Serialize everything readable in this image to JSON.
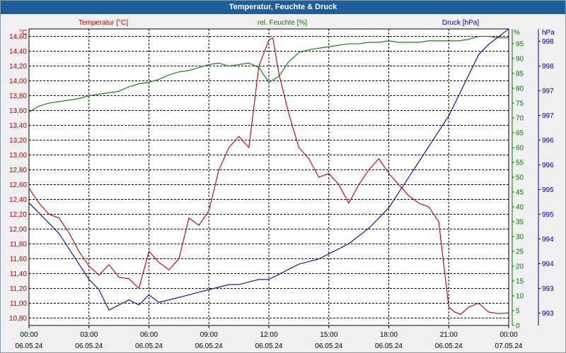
{
  "window": {
    "title": "Temperatur, Feuchte & Druck"
  },
  "chart_data": {
    "type": "line",
    "title": "Temperatur, Feuchte & Druck",
    "colors": {
      "temperature": "#c00000",
      "humidity": "#007a00",
      "pressure": "#0000b0"
    },
    "x": {
      "range_hours": [
        0,
        24
      ],
      "ticks": [
        {
          "time": "00:00",
          "date": "06.05.24"
        },
        {
          "time": "03:00",
          "date": "06.05.24"
        },
        {
          "time": "06:00",
          "date": "06.05.24"
        },
        {
          "time": "09:00",
          "date": "06.05.24"
        },
        {
          "time": "12:00",
          "date": "06.05.24"
        },
        {
          "time": "15:00",
          "date": "06.05.24"
        },
        {
          "time": "18:00",
          "date": "06.05.24"
        },
        {
          "time": "21:00",
          "date": "06.05.24"
        },
        {
          "time": "00:00",
          "date": "07.05.24"
        }
      ]
    },
    "axes": {
      "temperature": {
        "legend": "Temperatur [°C]",
        "unit": "°C",
        "ylim": [
          10.7,
          14.7
        ],
        "ticks": [
          "10,80",
          "11,00",
          "11,20",
          "11,40",
          "11,60",
          "11,80",
          "12,00",
          "12,20",
          "12,40",
          "12,60",
          "12,80",
          "13,00",
          "13,20",
          "13,40",
          "13,60",
          "13,80",
          "14,00",
          "14,20",
          "14,40",
          "14,60"
        ]
      },
      "humidity": {
        "legend": "rel. Feuchte [%]",
        "unit": "%",
        "ylim": [
          0,
          100
        ],
        "ticks": [
          "0",
          "5",
          "10",
          "15",
          "20",
          "25",
          "30",
          "35",
          "40",
          "45",
          "50",
          "55",
          "60",
          "65",
          "70",
          "75",
          "80",
          "85",
          "90",
          "95"
        ]
      },
      "pressure": {
        "legend": "Druck [hPa]",
        "unit": "hPa",
        "ylim": [
          992.6,
          998.4
        ],
        "ticks": [
          "993",
          "993",
          "994",
          "994",
          "995",
          "995",
          "996",
          "996",
          "997",
          "997",
          "998",
          "998"
        ]
      }
    },
    "series": [
      {
        "name": "Temperatur",
        "axis": "temperature",
        "x": [
          0,
          0.5,
          1,
          1.5,
          2,
          2.5,
          3,
          3.5,
          4,
          4.5,
          5,
          5.5,
          6,
          6.5,
          7,
          7.5,
          8,
          8.5,
          9,
          9.5,
          10,
          10.5,
          11,
          11.5,
          12,
          12.2,
          12.5,
          13,
          13.5,
          14,
          14.5,
          15,
          15.5,
          16,
          16.5,
          17,
          17.5,
          18,
          18.5,
          19,
          19.5,
          20,
          20.5,
          21,
          21.3,
          21.6,
          22,
          22.5,
          23,
          23.5,
          24
        ],
        "values": [
          12.55,
          12.35,
          12.2,
          12.15,
          11.95,
          11.7,
          11.5,
          11.38,
          11.52,
          11.35,
          11.33,
          11.2,
          11.7,
          11.55,
          11.45,
          11.6,
          12.15,
          12.05,
          12.25,
          12.8,
          13.1,
          13.25,
          13.1,
          14.2,
          14.55,
          14.58,
          14.1,
          13.55,
          13.1,
          12.95,
          12.7,
          12.75,
          12.6,
          12.35,
          12.6,
          12.8,
          12.95,
          12.75,
          12.6,
          12.45,
          12.35,
          12.3,
          12.1,
          10.95,
          10.88,
          10.85,
          10.95,
          11.0,
          10.88,
          10.86,
          10.87
        ]
      },
      {
        "name": "rel. Feuchte",
        "axis": "humidity",
        "x": [
          0,
          0.5,
          1,
          1.5,
          2,
          2.5,
          3,
          3.5,
          4,
          4.5,
          5,
          5.5,
          6,
          6.5,
          7,
          7.5,
          8,
          8.5,
          9,
          9.5,
          10,
          10.5,
          11,
          11.5,
          12,
          12.5,
          13,
          13.5,
          14,
          14.5,
          15,
          15.5,
          16,
          16.5,
          17,
          17.5,
          18,
          18.5,
          19,
          19.5,
          20,
          20.5,
          21,
          21.5,
          22,
          22.5,
          23,
          23.5,
          24
        ],
        "values": [
          72,
          74,
          75,
          75.5,
          76,
          76.5,
          77.5,
          78,
          78.5,
          79,
          80.5,
          81.5,
          82,
          83,
          84.5,
          85.5,
          86,
          87,
          88,
          88.5,
          87.5,
          88,
          88.5,
          87,
          82,
          84,
          89,
          92,
          93,
          93.5,
          94,
          94.5,
          95,
          95,
          95.5,
          95.5,
          96,
          95.5,
          95.5,
          95.5,
          96,
          96,
          96,
          96,
          96.5,
          97.5,
          97.5,
          97,
          97
        ]
      },
      {
        "name": "Druck",
        "axis": "pressure",
        "x": [
          0,
          0.5,
          1,
          1.5,
          2,
          2.5,
          3,
          3.5,
          4,
          4.5,
          5,
          5.5,
          6,
          6.5,
          7,
          7.5,
          8,
          8.5,
          9,
          9.5,
          10,
          10.5,
          11,
          11.5,
          12,
          12.5,
          13,
          13.5,
          14,
          14.5,
          15,
          15.5,
          16,
          16.5,
          17,
          17.5,
          18,
          18.5,
          19,
          19.5,
          20,
          20.5,
          21,
          21.5,
          22,
          22.5,
          23,
          23.5,
          24
        ],
        "values": [
          995.0,
          994.8,
          994.6,
          994.4,
          994.1,
          993.8,
          993.5,
          993.3,
          992.9,
          993.0,
          993.1,
          993.0,
          993.2,
          993.05,
          993.1,
          993.15,
          993.2,
          993.25,
          993.3,
          993.35,
          993.4,
          993.4,
          993.45,
          993.5,
          993.5,
          993.6,
          993.7,
          993.8,
          993.85,
          993.9,
          994.0,
          994.1,
          994.2,
          994.35,
          994.5,
          994.7,
          994.9,
          995.2,
          995.5,
          995.8,
          996.1,
          996.4,
          996.7,
          997.1,
          997.5,
          997.9,
          998.1,
          998.25,
          998.4
        ]
      }
    ]
  }
}
